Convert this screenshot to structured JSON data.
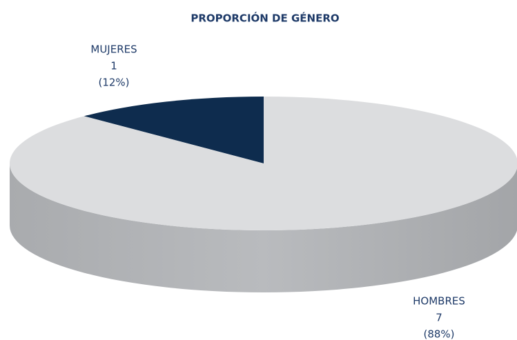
{
  "chart_data": {
    "type": "pie",
    "title": "PROPORCIÓN DE GÉNERO",
    "categories": [
      "MUJERES",
      "HOMBRES"
    ],
    "values": [
      1,
      7
    ],
    "percent_labels": [
      "(12%)",
      "(88%)"
    ],
    "colors": [
      "#0e2c4e",
      "#dcdddf"
    ]
  }
}
